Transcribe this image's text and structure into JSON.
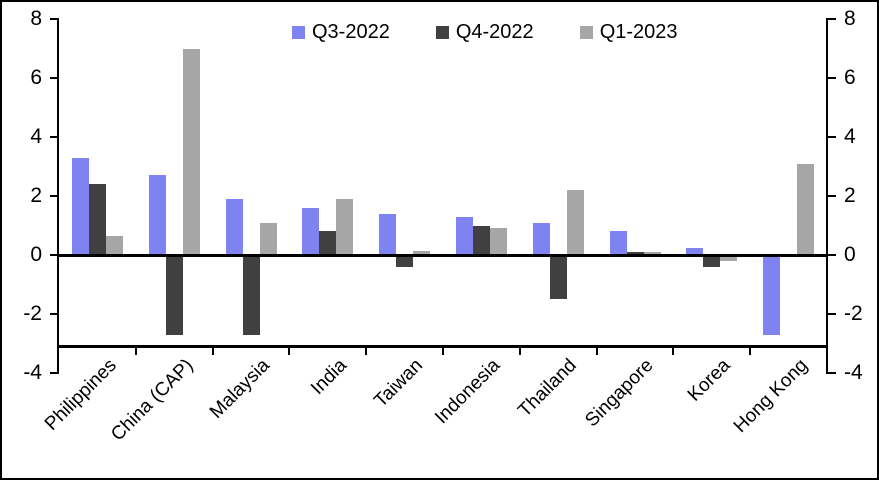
{
  "chart_data": {
    "type": "bar",
    "title": "",
    "xlabel": "",
    "ylabel": "",
    "categories": [
      "Philippines",
      "China (CAP)",
      "Malaysia",
      "India",
      "Taiwan",
      "Indonesia",
      "Thailand",
      "Singapore",
      "Korea",
      "Hong Kong"
    ],
    "series": [
      {
        "name": "Q3-2022",
        "color": "#7F83F2",
        "values": [
          3.3,
          2.7,
          1.9,
          1.6,
          1.4,
          1.3,
          1.1,
          0.8,
          0.25,
          -2.7
        ]
      },
      {
        "name": "Q4-2022",
        "color": "#404040",
        "values": [
          2.4,
          -2.7,
          -2.7,
          0.8,
          -0.4,
          1.0,
          -1.5,
          0.1,
          -0.4,
          0.0
        ]
      },
      {
        "name": "Q1-2023",
        "color": "#A6A6A6",
        "values": [
          0.65,
          7.0,
          1.1,
          1.9,
          0.15,
          0.9,
          2.2,
          0.1,
          -0.2,
          3.1
        ]
      }
    ],
    "ylim": [
      -4,
      8
    ],
    "yticks": [
      8,
      6,
      4,
      2,
      0,
      -2,
      -4
    ],
    "legend_position": "top",
    "grid": false,
    "axis_color": "#000000",
    "background_color": "#FFFFFF"
  }
}
